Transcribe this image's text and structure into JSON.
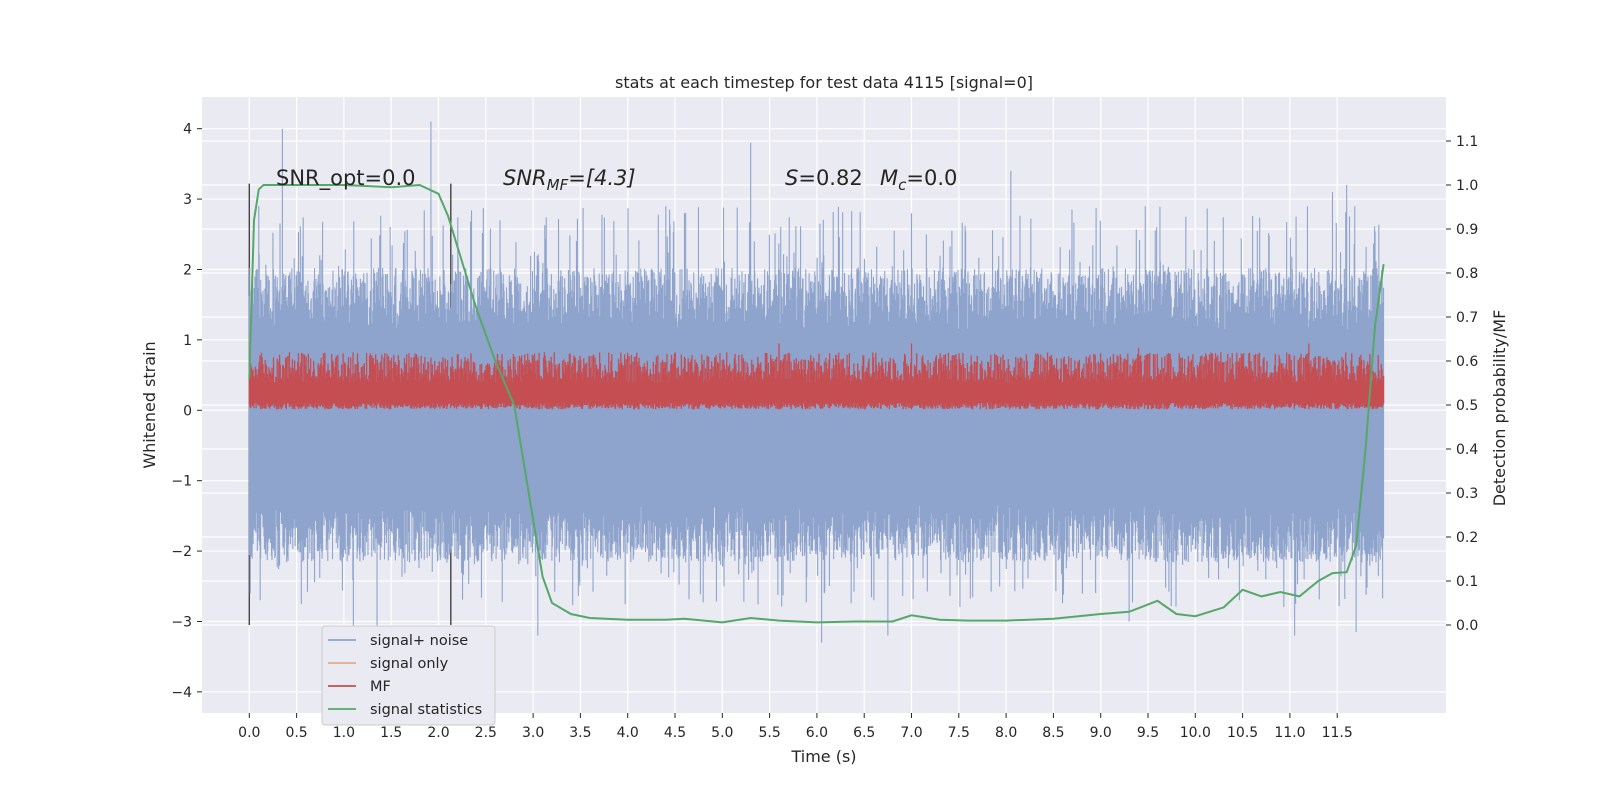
{
  "chart_data": {
    "type": "line",
    "title": "stats at each timestep for test data 4115 [signal=0]",
    "xlabel": "Time (s)",
    "ylabel": "Whitened strain",
    "y2label": "Detection probability/MF",
    "xlim": [
      -0.5,
      12.65
    ],
    "ylim": [
      -4.3,
      4.45
    ],
    "y2lim": [
      -0.2,
      1.2
    ],
    "x_ticks": [
      0.0,
      0.5,
      1.0,
      1.5,
      2.0,
      2.5,
      3.0,
      3.5,
      4.0,
      4.5,
      5.0,
      5.5,
      6.0,
      6.5,
      7.0,
      7.5,
      8.0,
      8.5,
      9.0,
      9.5,
      10.0,
      10.5,
      11.0,
      11.5
    ],
    "x_tick_labels": [
      "0.0",
      "0.5",
      "1.0",
      "1.5",
      "2.0",
      "2.5",
      "3.0",
      "3.5",
      "4.0",
      "4.5",
      "5.0",
      "5.5",
      "6.0",
      "6.5",
      "7.0",
      "7.5",
      "8.0",
      "8.5",
      "9.0",
      "9.5",
      "10.0",
      "10.5",
      "11.0",
      "11.5"
    ],
    "y_ticks": [
      4,
      3,
      2,
      1,
      0,
      -1,
      -2,
      -3,
      -4
    ],
    "y_tick_labels": [
      "4",
      "3",
      "2",
      "1",
      "0",
      "−1",
      "−2",
      "−3",
      "−4"
    ],
    "y2_ticks": [
      1.1,
      1.0,
      0.9,
      0.8,
      0.7,
      0.6,
      0.5,
      0.4,
      0.3,
      0.2,
      0.1,
      0.0
    ],
    "y2_tick_labels": [
      "1.1",
      "1.0",
      "0.9",
      "0.8",
      "0.7",
      "0.6",
      "0.5",
      "0.4",
      "0.3",
      "0.2",
      "0.1",
      "0.0"
    ],
    "grid": true,
    "legend_position": "lower-left",
    "vertical_lines": [
      0.0,
      2.13
    ],
    "vertical_line_range": [
      -3.05,
      3.22
    ],
    "annotations": {
      "snr_opt": "SNR_opt=0.0",
      "snr_mf_main": "SNR",
      "snr_mf_sub": "MF",
      "snr_mf_rest": "=[4.3]",
      "s_var": "S",
      "s_rest": "=0.82",
      "mc_var": "M",
      "mc_sub": "c",
      "mc_rest": "=0.0"
    },
    "series": [
      {
        "name": "signal+ noise",
        "color": "#8fa4cd",
        "axis": "left",
        "x_range": [
          0.0,
          11.99
        ],
        "envelope_low": -1.8,
        "envelope_high": 1.5,
        "peaks_high": [
          [
            0.35,
            4.0
          ],
          [
            1.92,
            4.1
          ],
          [
            0.1,
            2.9
          ],
          [
            2.65,
            2.7
          ],
          [
            4.6,
            2.8
          ],
          [
            5.3,
            3.8
          ],
          [
            7.0,
            2.8
          ],
          [
            8.05,
            3.4
          ],
          [
            9.9,
            2.75
          ],
          [
            11.45,
            3.1
          ],
          [
            11.6,
            3.2
          ]
        ],
        "peaks_low": [
          [
            1.1,
            -3.1
          ],
          [
            1.35,
            -3.3
          ],
          [
            3.05,
            -3.2
          ],
          [
            6.05,
            -3.3
          ],
          [
            6.75,
            -3.2
          ],
          [
            9.3,
            -3.0
          ],
          [
            11.05,
            -3.2
          ],
          [
            11.7,
            -3.15
          ]
        ]
      },
      {
        "name": "signal only",
        "color": "#e8a886",
        "axis": "left",
        "x": [],
        "y": []
      },
      {
        "name": "MF",
        "color": "#c44e52",
        "axis": "right",
        "x_range": [
          0.0,
          11.99
        ],
        "band_low": 0.49,
        "band_high": 0.62,
        "peaks": [
          [
            5.6,
            0.64
          ],
          [
            7.0,
            0.64
          ],
          [
            9.4,
            0.63
          ],
          [
            11.2,
            0.64
          ]
        ]
      },
      {
        "name": "signal statistics",
        "color": "#55a868",
        "axis": "right",
        "x": [
          0.0,
          0.05,
          0.1,
          0.15,
          0.3,
          0.6,
          1.0,
          1.5,
          1.8,
          2.0,
          2.1,
          2.2,
          2.4,
          2.6,
          2.8,
          3.0,
          3.1,
          3.2,
          3.4,
          3.6,
          4.0,
          4.4,
          4.6,
          5.0,
          5.3,
          5.6,
          6.0,
          6.4,
          6.8,
          7.0,
          7.3,
          7.6,
          8.0,
          8.5,
          9.0,
          9.3,
          9.6,
          9.8,
          10.0,
          10.3,
          10.5,
          10.7,
          10.9,
          11.1,
          11.3,
          11.45,
          11.6,
          11.7,
          11.8,
          11.9,
          11.99
        ],
        "y": [
          0.56,
          0.92,
          0.99,
          1.0,
          1.0,
          1.0,
          1.0,
          0.995,
          1.0,
          0.98,
          0.93,
          0.86,
          0.72,
          0.6,
          0.5,
          0.24,
          0.11,
          0.05,
          0.025,
          0.016,
          0.012,
          0.012,
          0.014,
          0.006,
          0.016,
          0.01,
          0.006,
          0.008,
          0.008,
          0.022,
          0.012,
          0.01,
          0.01,
          0.014,
          0.025,
          0.03,
          0.055,
          0.025,
          0.02,
          0.04,
          0.08,
          0.065,
          0.075,
          0.065,
          0.1,
          0.118,
          0.12,
          0.18,
          0.4,
          0.68,
          0.82
        ]
      }
    ]
  }
}
